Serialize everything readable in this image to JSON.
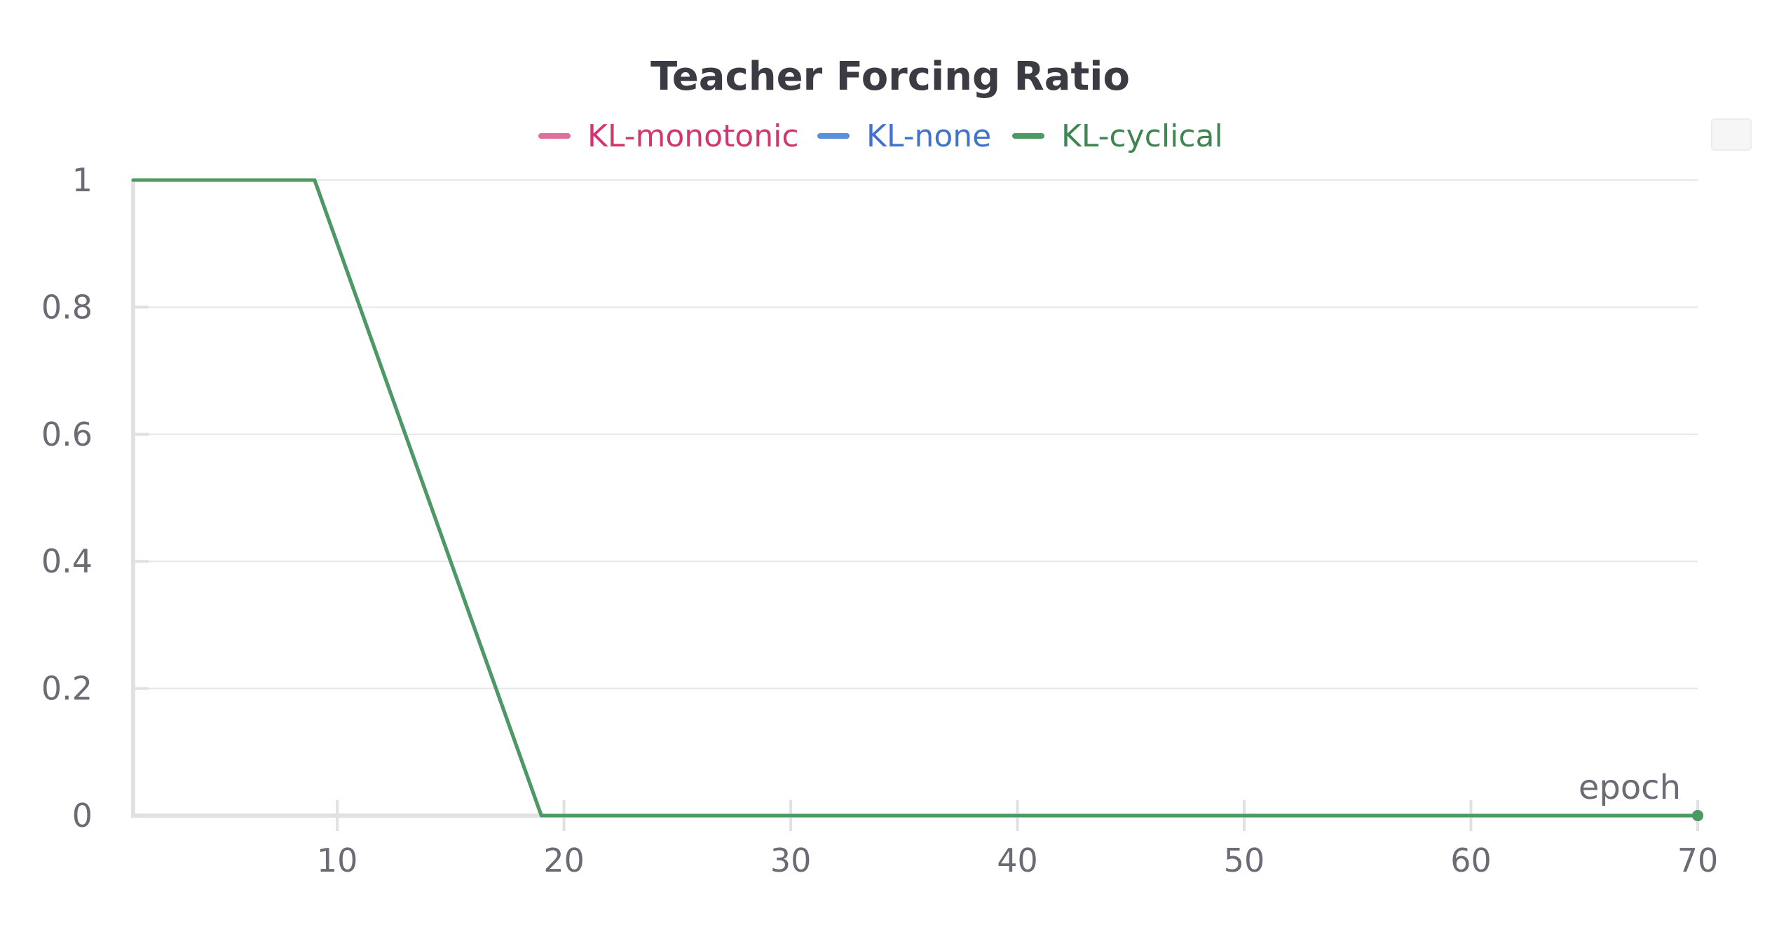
{
  "chart_data": {
    "type": "line",
    "title": "Teacher Forcing Ratio",
    "xlabel": "epoch",
    "ylabel": "",
    "xlim": [
      1,
      70
    ],
    "ylim": [
      0,
      1
    ],
    "xticks": [
      10,
      20,
      30,
      40,
      50,
      60,
      70
    ],
    "yticks": [
      0,
      0.2,
      0.4,
      0.6,
      0.8,
      1
    ],
    "xtick_labels": [
      "10",
      "20",
      "30",
      "40",
      "50",
      "60",
      "70"
    ],
    "ytick_labels": [
      "0",
      "0.2",
      "0.4",
      "0.6",
      "0.8",
      "1"
    ],
    "grid": true,
    "legend_position": "top-center",
    "series": [
      {
        "name": "KL-monotonic",
        "color": "#e0709b",
        "label_color": "#d3356f",
        "points": [
          [
            1,
            1
          ],
          [
            9,
            1
          ],
          [
            19,
            0
          ],
          [
            70,
            0
          ]
        ]
      },
      {
        "name": "KL-none",
        "color": "#5a8fdd",
        "label_color": "#3f73cc",
        "points": [
          [
            1,
            1
          ],
          [
            9,
            1
          ],
          [
            19,
            0
          ],
          [
            70,
            0
          ]
        ]
      },
      {
        "name": "KL-cyclical",
        "color": "#4c9a63",
        "label_color": "#3f8552",
        "points": [
          [
            1,
            1
          ],
          [
            9,
            1
          ],
          [
            19,
            0
          ],
          [
            70,
            0
          ]
        ]
      }
    ]
  }
}
